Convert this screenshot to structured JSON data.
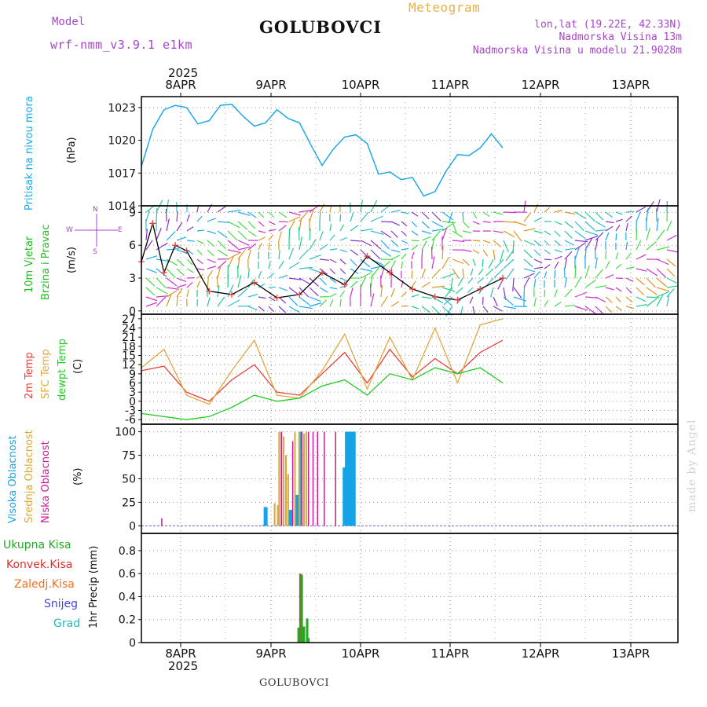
{
  "header": {
    "model_label": "Model",
    "model_name": "wrf-nmm_v3.9.1 e1km",
    "station": "GOLUBOVCI",
    "meteogram": "Meteogram",
    "coords": "lon,lat (19.22E, 42.33N)",
    "elev": "Nadmorska Visina 13m",
    "elev_model": "Nadmorska Visina u modelu 21.9028m"
  },
  "year_label": "2025",
  "day_labels": [
    "8APR",
    "9APR",
    "10APR",
    "11APR",
    "12APR",
    "13APR"
  ],
  "footer_station": "GOLUBOVCI",
  "watermark": "made by Angel",
  "colors": {
    "pressure": "#1fa8e8",
    "temp2m": "#e8403a",
    "sfc": "#e0a840",
    "dew": "#22cc22",
    "wind_label": "#22bb22",
    "visoka": "#16a2e6",
    "srednja": "#d8a83a",
    "niska": "#cc1a9a",
    "ukupna": "#22aa22",
    "konvek": "#e03030",
    "zaledj": "#f07020",
    "snijeg": "#4444dd",
    "grad": "#22bbbb",
    "purple_text": "#aa44cc",
    "model_purple": "#aa44cc",
    "orange_title": "#e8b050"
  },
  "panels": {
    "pressure": {
      "label": "Pritisak na nivou mora",
      "unit": "(hPa)",
      "ticks": [
        "1014",
        "1017",
        "1020",
        "1023"
      ]
    },
    "wind": {
      "label1": "10m Vjetar",
      "label2": "Brzina i Pravac",
      "unit": "(m/s)",
      "compass": [
        "N",
        "S",
        "W",
        "E"
      ],
      "ticks": [
        "0",
        "3",
        "6",
        "9"
      ]
    },
    "temp": {
      "label1": "2m Temp",
      "label2": "SFC Temp",
      "label3": "dewpt Temp",
      "unit": "(C)",
      "ticks": [
        "-6",
        "-3",
        "0",
        "3",
        "6",
        "9",
        "12",
        "15",
        "18",
        "21",
        "24",
        "27"
      ]
    },
    "cloud": {
      "label1": "Visoka Oblacnost",
      "label2": "Srednja Oblacnost",
      "label3": "Niska Oblacnost",
      "unit": "(%)",
      "ticks": [
        "0",
        "25",
        "50",
        "75",
        "100"
      ]
    },
    "precip": {
      "labels": [
        "Ukupna Kisa",
        "Konvek.Kisa",
        "Zaledj.Kisa",
        "Snijeg",
        "Grad"
      ],
      "axis": "1hr Precip (mm)",
      "ticks": [
        "0",
        "0.2",
        "0.4",
        "0.6",
        "0.8"
      ]
    }
  },
  "chart_data": [
    {
      "type": "line",
      "panel": "pressure",
      "ylabel": "Pritisak na nivou mora (hPa)",
      "ylim": [
        1014,
        1024
      ],
      "x": [
        0,
        0.25,
        0.5,
        0.75,
        1.0,
        1.25,
        1.5,
        1.75,
        2.0,
        2.25,
        2.5,
        2.75,
        3.0,
        3.25,
        3.5,
        3.75,
        4.0,
        4.25,
        4.5,
        4.75,
        5.0,
        5.25,
        5.5,
        5.75,
        6.0,
        6.25
      ],
      "values": [
        1017.6,
        1021.0,
        1022.8,
        1023.2,
        1023.0,
        1021.5,
        1021.8,
        1023.2,
        1023.3,
        1022.2,
        1021.3,
        1021.6,
        1022.8,
        1022.0,
        1021.6,
        1019.6,
        1017.7,
        1019.2,
        1020.3,
        1020.5,
        1019.7,
        1016.9,
        1017.1,
        1016.4,
        1016.6,
        1014.9
      ],
      "tail_x": [
        6.5,
        6.75,
        7.0,
        7.25,
        7.5,
        7.75,
        8.0
      ],
      "tail_values": [
        1015.3,
        1017.2,
        1018.7,
        1018.6,
        1019.3,
        1020.6,
        1019.3
      ]
    },
    {
      "type": "line",
      "panel": "wind",
      "ylabel": "10m Vjetar Brzina i Pravac (m/s)",
      "ylim": [
        0,
        9.5
      ],
      "x": [
        0,
        0.25,
        0.5,
        0.75,
        1.0,
        1.5,
        2.0,
        2.5,
        3.0,
        3.5,
        4.0,
        4.5,
        5.0,
        5.5,
        6.0,
        6.5,
        7.0,
        7.5,
        8.0
      ],
      "values": [
        4.5,
        8.0,
        3.5,
        6.0,
        5.5,
        1.8,
        1.5,
        2.6,
        1.2,
        1.5,
        3.5,
        2.4,
        5.0,
        3.5,
        2.0,
        1.3,
        1.0,
        2.0,
        3.0
      ]
    },
    {
      "type": "line",
      "panel": "temp",
      "ylabel": "Temp (C)",
      "ylim": [
        -7,
        28
      ],
      "x": [
        0,
        0.5,
        1.0,
        1.5,
        2.0,
        2.5,
        3.0,
        3.5,
        4.0,
        4.5,
        5.0,
        5.5,
        6.0,
        6.5,
        7.0,
        7.5,
        8.0
      ],
      "series": [
        {
          "name": "2m Temp",
          "values": [
            10,
            11.5,
            3,
            0,
            7,
            12,
            3,
            2,
            9,
            16,
            6,
            17,
            8,
            14,
            9,
            16,
            20
          ]
        },
        {
          "name": "SFC Temp",
          "values": [
            11,
            17,
            2,
            -1,
            10,
            20,
            2,
            1,
            10,
            22,
            4,
            21,
            7,
            24,
            6,
            25,
            27
          ]
        },
        {
          "name": "dewpt Temp",
          "values": [
            -4,
            -5,
            -6,
            -5,
            -2,
            2,
            0,
            1,
            5,
            7,
            2,
            9,
            7,
            11,
            9,
            11,
            6
          ]
        }
      ]
    },
    {
      "type": "bar",
      "panel": "cloud",
      "ylabel": "Oblacnost (%)",
      "ylim": [
        0,
        100
      ],
      "series": [
        {
          "name": "Visoka Oblacnost",
          "x": [
            2.72,
            2.75,
            3.3,
            3.45,
            3.52,
            4.5,
            4.55,
            4.6,
            4.65,
            4.7
          ],
          "values": [
            1,
            20,
            17,
            33,
            100,
            62,
            100,
            100,
            100,
            100
          ]
        },
        {
          "name": "Srednja Oblacnost",
          "x": [
            2.95,
            3.02,
            3.05,
            3.1,
            3.15,
            3.2,
            3.25,
            3.4,
            3.5,
            3.55,
            3.6,
            3.65
          ],
          "values": [
            24,
            22,
            100,
            100,
            95,
            75,
            55,
            100,
            100,
            80,
            98,
            100
          ]
        },
        {
          "name": "Niska Oblacnost",
          "x": [
            0.45,
            3.1,
            3.35,
            3.55,
            3.7,
            3.8,
            3.9,
            4.05,
            4.3
          ],
          "values": [
            8,
            100,
            90,
            100,
            100,
            100,
            100,
            100,
            100
          ]
        }
      ]
    },
    {
      "type": "bar",
      "panel": "precip",
      "ylabel": "1hr Precip (mm)",
      "ylim": [
        0,
        0.95
      ],
      "series": [
        {
          "name": "Ukupna Kisa",
          "x": [
            3.48,
            3.52,
            3.55,
            3.6,
            3.67,
            3.7
          ],
          "values": [
            0.13,
            0.6,
            0.59,
            0.14,
            0.21,
            0.04
          ]
        }
      ]
    }
  ]
}
